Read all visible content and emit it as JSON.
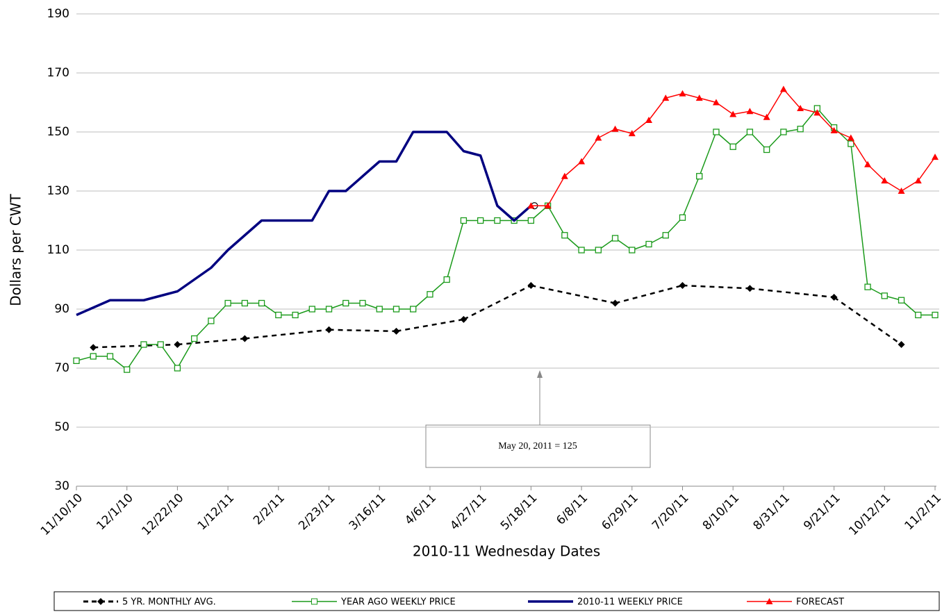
{
  "chart_data": {
    "type": "line",
    "ylabel": "Dollars per CWT",
    "xlabel": "2010-11 Wednesday Dates",
    "categories": [
      "11/10/10",
      null,
      null,
      "12/1/10",
      null,
      null,
      "12/22/10",
      null,
      null,
      "1/12/11",
      null,
      null,
      "2/2/11",
      null,
      null,
      "2/23/11",
      null,
      null,
      "3/16/11",
      null,
      null,
      "4/6/11",
      null,
      null,
      "4/27/11",
      null,
      null,
      "5/18/11",
      null,
      null,
      "6/8/11",
      null,
      null,
      "6/29/11",
      null,
      null,
      "7/20/11",
      null,
      null,
      "8/10/11",
      null,
      null,
      "8/31/11",
      null,
      null,
      "9/21/11",
      null,
      null,
      "10/12/11",
      null,
      null,
      "11/2/11"
    ],
    "ylim": [
      30,
      190
    ],
    "yticks": [
      30,
      50,
      70,
      90,
      110,
      130,
      150,
      170,
      190
    ],
    "grid": true,
    "series": [
      {
        "name": "5 YR. MONTHLY AVG.",
        "color": "#000000",
        "style": "dashed",
        "marker": "diamond",
        "values": [
          null,
          77,
          null,
          null,
          null,
          null,
          78,
          null,
          null,
          null,
          80,
          null,
          null,
          null,
          null,
          83,
          null,
          null,
          null,
          82.5,
          null,
          null,
          null,
          86.5,
          null,
          null,
          null,
          98,
          null,
          null,
          null,
          null,
          92,
          null,
          null,
          null,
          98,
          null,
          null,
          null,
          97,
          null,
          null,
          null,
          null,
          94,
          null,
          null,
          null,
          78,
          null,
          null
        ]
      },
      {
        "name": "YEAR AGO WEEKLY PRICE",
        "color": "#1a9a1a",
        "style": "solid",
        "marker": "square",
        "values": [
          72.5,
          74,
          74,
          69.5,
          78,
          78,
          70,
          80,
          86,
          92,
          92,
          92,
          88,
          88,
          90,
          90,
          92,
          92,
          90,
          90,
          90,
          95,
          100,
          120,
          120,
          120,
          120,
          120,
          125,
          115,
          110,
          110,
          114,
          110,
          112,
          115,
          121,
          135,
          150,
          145,
          150,
          144,
          150,
          151,
          158,
          151.5,
          146,
          97.5,
          94.5,
          93,
          88,
          88
        ]
      },
      {
        "name": "2010-11 WEEKLY PRICE",
        "color": "#000080",
        "style": "thick",
        "marker": "circle-last",
        "values": [
          88,
          90.5,
          93,
          93,
          93,
          94.5,
          96,
          100,
          104,
          110,
          115,
          120,
          120,
          120,
          120,
          130,
          130,
          135,
          140,
          140,
          150,
          150,
          150,
          143.5,
          142,
          125,
          120,
          125,
          null,
          null,
          null,
          null,
          null,
          null,
          null,
          null,
          null,
          null,
          null,
          null,
          null,
          null,
          null,
          null,
          null,
          null,
          null,
          null,
          null,
          null,
          null,
          null
        ]
      },
      {
        "name": "FORECAST",
        "color": "#ff0000",
        "style": "solid",
        "marker": "triangle",
        "values": [
          null,
          null,
          null,
          null,
          null,
          null,
          null,
          null,
          null,
          null,
          null,
          null,
          null,
          null,
          null,
          null,
          null,
          null,
          null,
          null,
          null,
          null,
          null,
          null,
          null,
          null,
          null,
          125,
          125,
          135,
          140,
          148,
          151,
          149.5,
          154,
          161.5,
          163,
          161.5,
          160,
          156,
          157,
          155,
          164.5,
          158,
          156.5,
          150.5,
          148,
          139,
          133.5,
          130,
          133.5,
          141.5
        ]
      }
    ],
    "annotation": "May 20, 2011 = 125",
    "legend": "bottom"
  }
}
